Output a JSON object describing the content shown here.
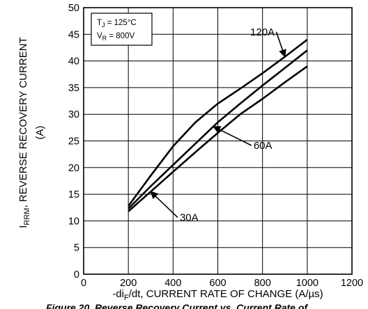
{
  "chart_data": {
    "type": "line",
    "xlabel_parts": [
      "-di",
      "F",
      "/dt, CURRENT RATE OF CHANGE (A/µs)"
    ],
    "ylabel_parts": [
      "I",
      "RRM",
      ", REVERSE RECOVERY CURRENT"
    ],
    "ylabel_unit": "(A)",
    "xlim": [
      0,
      1200
    ],
    "ylim": [
      0,
      50
    ],
    "x_ticks": [
      "0",
      "200",
      "400",
      "600",
      "800",
      "1000",
      "1200"
    ],
    "y_ticks": [
      "0",
      "5",
      "10",
      "15",
      "20",
      "25",
      "30",
      "35",
      "40",
      "45",
      "50"
    ],
    "grid": true,
    "conditions": {
      "tj": {
        "main": "T",
        "sub": "J",
        "rest": " = 125°C"
      },
      "vr": {
        "main": "V",
        "sub": "R",
        "rest": " = 800V"
      }
    },
    "series": [
      {
        "name": "120A",
        "x": [
          200,
          300,
          400,
          500,
          600,
          700,
          800,
          900,
          1000
        ],
        "y": [
          12.8,
          18.5,
          24.0,
          28.5,
          32.0,
          34.8,
          37.7,
          40.8,
          44.0
        ]
      },
      {
        "name": "60A",
        "x": [
          200,
          300,
          400,
          500,
          600,
          700,
          800,
          900,
          1000
        ],
        "y": [
          12.3,
          16.5,
          20.5,
          24.5,
          28.5,
          32.0,
          35.4,
          38.7,
          42.0
        ]
      },
      {
        "name": "30A",
        "x": [
          200,
          300,
          400,
          500,
          600,
          700,
          800,
          900,
          1000
        ],
        "y": [
          11.8,
          15.5,
          19.2,
          22.9,
          26.5,
          30.0,
          32.9,
          36.0,
          39.0
        ]
      }
    ],
    "annotations": [
      {
        "text": "120A",
        "series": "120A",
        "at_x": 900,
        "label_x": 745,
        "label_y": 44.8
      },
      {
        "text": "60A",
        "series": "60A",
        "at_x": 580,
        "label_x": 760,
        "label_y": 23.5
      },
      {
        "text": "30A",
        "series": "30A",
        "at_x": 300,
        "label_x": 430,
        "label_y": 10.0
      }
    ],
    "caption": "Figure 20. Reverse Recovery Current vs. Current Rate of"
  }
}
